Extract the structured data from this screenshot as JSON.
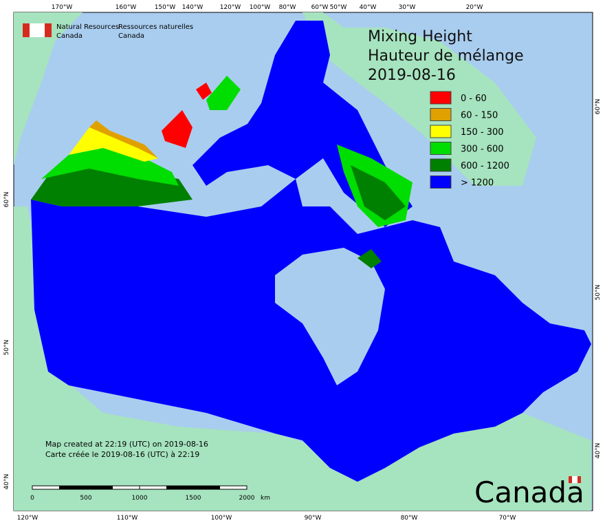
{
  "header": {
    "agency_en": [
      "Natural Resources",
      "Canada"
    ],
    "agency_fr": [
      "Ressources naturelles",
      "Canada"
    ]
  },
  "title": [
    "Mixing Height",
    "Hauteur de mélange",
    "2019-08-16"
  ],
  "legend": [
    {
      "label": "0 - 60",
      "color": "#ff0000"
    },
    {
      "label": "60 - 150",
      "color": "#e0a000"
    },
    {
      "label": "150 - 300",
      "color": "#ffff00"
    },
    {
      "label": "300 - 600",
      "color": "#00dd00"
    },
    {
      "label": "600 - 1200",
      "color": "#008000"
    },
    {
      "label": "> 1200",
      "color": "#0000ff"
    }
  ],
  "top_longitudes": [
    "170°W",
    "160°W",
    "150°W",
    "140°W",
    "120°W",
    "100°W",
    "80°W",
    "60°W",
    "50°W",
    "40°W",
    "30°W",
    "20°W"
  ],
  "bottom_longitudes": [
    "120°W",
    "110°W",
    "100°W",
    "90°W",
    "80°W",
    "70°W"
  ],
  "left_latitudes": [
    "60°N",
    "50°N",
    "40°N"
  ],
  "right_latitudes": [
    "60°N",
    "50°N",
    "40°N"
  ],
  "credits": [
    "Map created at 22:19 (UTC) on 2019-08-16",
    "Carte créée le 2019-08-16 (UTC) à 22:19"
  ],
  "scale": {
    "labels": [
      0,
      500,
      1000,
      1500,
      2000
    ],
    "unit": "km"
  },
  "wordmark": "Canada"
}
